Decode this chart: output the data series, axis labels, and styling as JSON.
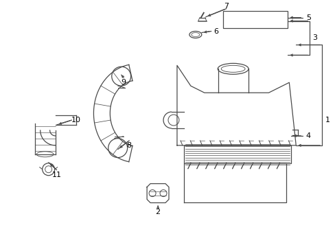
{
  "bg_color": "#ffffff",
  "lc": "#4a4a4a",
  "lw": 0.9,
  "fig_width": 4.89,
  "fig_height": 3.6,
  "dpi": 100
}
